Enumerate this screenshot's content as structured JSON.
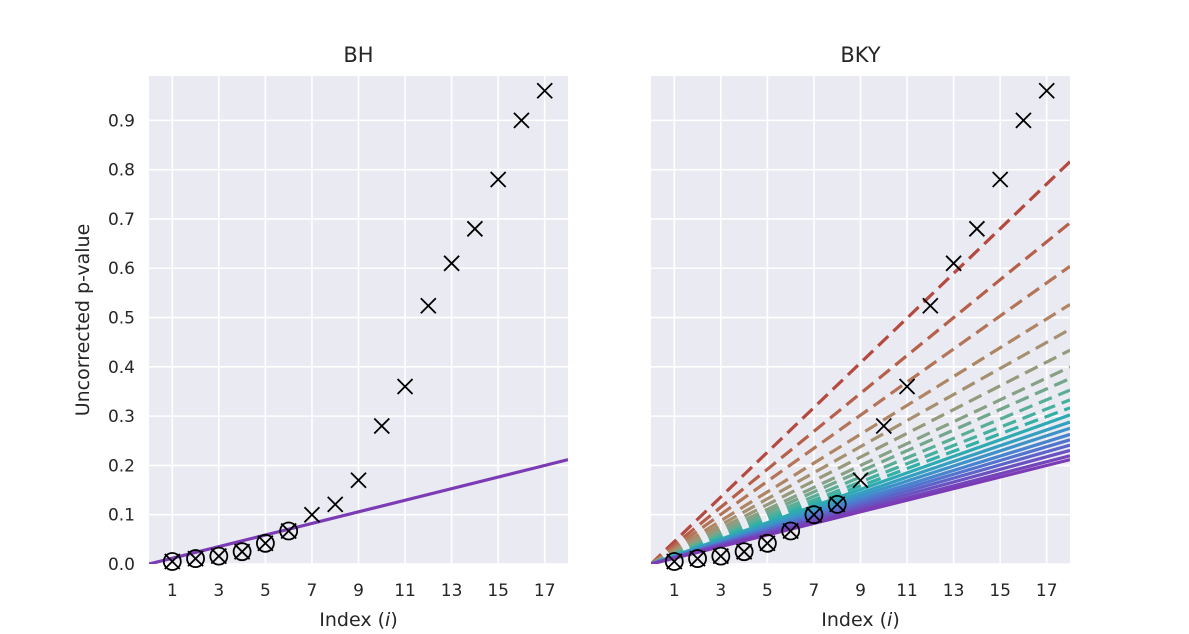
{
  "chart_data": [
    {
      "type": "scatter",
      "title": "BH",
      "xlabel": "Index (i)",
      "ylabel": "Uncorrected p-value",
      "xlim": [
        0,
        18
      ],
      "ylim": [
        0,
        0.99
      ],
      "xticks": [
        1,
        3,
        5,
        7,
        9,
        11,
        13,
        15,
        17
      ],
      "yticks": [
        0.0,
        0.1,
        0.2,
        0.3,
        0.4,
        0.5,
        0.6,
        0.7,
        0.8,
        0.9
      ],
      "grid": true,
      "points": {
        "x": [
          1,
          2,
          3,
          4,
          5,
          6,
          7,
          8,
          9,
          10,
          11,
          12,
          13,
          14,
          15,
          16,
          17
        ],
        "y": [
          0.005,
          0.011,
          0.016,
          0.025,
          0.042,
          0.067,
          0.1,
          0.121,
          0.17,
          0.28,
          0.36,
          0.524,
          0.61,
          0.68,
          0.78,
          0.9,
          0.96
        ],
        "marker": "x"
      },
      "rejected_indices": [
        1,
        2,
        3,
        4,
        5,
        6
      ],
      "threshold_lines": [
        {
          "slope": 0.01176,
          "style": "solid",
          "color": "#7b3bb5"
        }
      ]
    },
    {
      "type": "scatter",
      "title": "BKY",
      "xlabel": "Index (i)",
      "ylabel": "",
      "xlim": [
        0,
        18
      ],
      "ylim": [
        0,
        0.99
      ],
      "xticks": [
        1,
        3,
        5,
        7,
        9,
        11,
        13,
        15,
        17
      ],
      "yticks": [
        0.0,
        0.1,
        0.2,
        0.3,
        0.4,
        0.5,
        0.6,
        0.7,
        0.8,
        0.9
      ],
      "grid": true,
      "points": {
        "x": [
          1,
          2,
          3,
          4,
          5,
          6,
          7,
          8,
          9,
          10,
          11,
          12,
          13,
          14,
          15,
          16,
          17
        ],
        "y": [
          0.005,
          0.011,
          0.016,
          0.025,
          0.042,
          0.067,
          0.1,
          0.121,
          0.17,
          0.28,
          0.36,
          0.524,
          0.61,
          0.68,
          0.78,
          0.9,
          0.96
        ],
        "marker": "x"
      },
      "rejected_indices": [
        1,
        2,
        3,
        4,
        5,
        6,
        7,
        8
      ],
      "threshold_lines": [
        {
          "slope": 0.04535,
          "style": "dashed",
          "color": "#b5493f"
        },
        {
          "slope": 0.03845,
          "style": "dashed",
          "color": "#b6604a"
        },
        {
          "slope": 0.03355,
          "style": "dashed",
          "color": "#b47457"
        },
        {
          "slope": 0.02925,
          "style": "dashed",
          "color": "#b08563"
        },
        {
          "slope": 0.02645,
          "style": "dashed",
          "color": "#a59170"
        },
        {
          "slope": 0.0241,
          "style": "dashed",
          "color": "#96997a"
        },
        {
          "slope": 0.0222,
          "style": "dashed",
          "color": "#86a183"
        },
        {
          "slope": 0.0209,
          "style": "dashed",
          "color": "#73a78c"
        },
        {
          "slope": 0.0196,
          "style": "dashed",
          "color": "#5aae95"
        },
        {
          "slope": 0.0185,
          "style": "dashed",
          "color": "#45b09e"
        },
        {
          "slope": 0.0176,
          "style": "dashed",
          "color": "#33b0a6"
        },
        {
          "slope": 0.0168,
          "style": "solid",
          "color": "#2eaab2"
        },
        {
          "slope": 0.016,
          "style": "solid",
          "color": "#349fbe"
        },
        {
          "slope": 0.0153,
          "style": "solid",
          "color": "#3d93c8"
        },
        {
          "slope": 0.0146,
          "style": "solid",
          "color": "#4884cd"
        },
        {
          "slope": 0.014,
          "style": "solid",
          "color": "#5274cc"
        },
        {
          "slope": 0.0134,
          "style": "solid",
          "color": "#5d63c8"
        },
        {
          "slope": 0.0128,
          "style": "solid",
          "color": "#6a52c1"
        },
        {
          "slope": 0.0122,
          "style": "solid",
          "color": "#7444ba"
        },
        {
          "slope": 0.01176,
          "style": "solid",
          "color": "#7b3bb5"
        }
      ]
    }
  ]
}
